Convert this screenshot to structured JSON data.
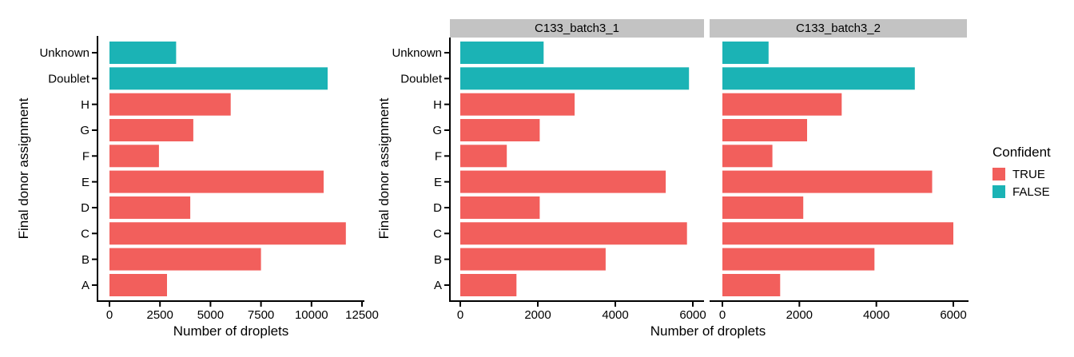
{
  "figure": {
    "background": "#ffffff",
    "axis_color": "#000000",
    "strip_background": "#c3c3c3",
    "true_color": "#f25f5c",
    "false_color": "#1bb3b5"
  },
  "legend": {
    "title": "Confident",
    "entries": [
      {
        "label": "TRUE",
        "color": "#f25f5c"
      },
      {
        "label": "FALSE",
        "color": "#1bb3b5"
      }
    ],
    "position": "right"
  },
  "chart_data": [
    {
      "type": "bar",
      "orientation": "horizontal",
      "title": "",
      "xlabel": "Number of droplets",
      "ylabel": "Final donor assignment",
      "categories": [
        "Unknown",
        "Doublet",
        "H",
        "G",
        "F",
        "E",
        "D",
        "C",
        "B",
        "A"
      ],
      "values": [
        3300,
        10800,
        6000,
        4150,
        2450,
        10600,
        4000,
        11700,
        7500,
        2850
      ],
      "confident": [
        "FALSE",
        "FALSE",
        "TRUE",
        "TRUE",
        "TRUE",
        "TRUE",
        "TRUE",
        "TRUE",
        "TRUE",
        "TRUE"
      ],
      "xlim": [
        0,
        12500
      ],
      "xticks": [
        0,
        2500,
        5000,
        7500,
        10000,
        12500
      ],
      "grid": false,
      "legend_position": "none"
    },
    {
      "type": "bar",
      "orientation": "horizontal",
      "title": "",
      "xlabel": "Number of droplets",
      "ylabel": "Final donor assignment",
      "categories": [
        "Unknown",
        "Doublet",
        "H",
        "G",
        "F",
        "E",
        "D",
        "C",
        "B",
        "A"
      ],
      "confident": [
        "FALSE",
        "FALSE",
        "TRUE",
        "TRUE",
        "TRUE",
        "TRUE",
        "TRUE",
        "TRUE",
        "TRUE",
        "TRUE"
      ],
      "facets": [
        {
          "label": "C133_batch3_1",
          "values": [
            2150,
            5900,
            2950,
            2050,
            1200,
            5300,
            2050,
            5850,
            3750,
            1450
          ]
        },
        {
          "label": "C133_batch3_2",
          "values": [
            1200,
            5000,
            3100,
            2200,
            1300,
            5450,
            2100,
            6000,
            3950,
            1500
          ]
        }
      ],
      "xlim": [
        0,
        6000
      ],
      "xticks": [
        0,
        2000,
        4000,
        6000
      ],
      "grid": false,
      "legend_position": "right"
    }
  ]
}
